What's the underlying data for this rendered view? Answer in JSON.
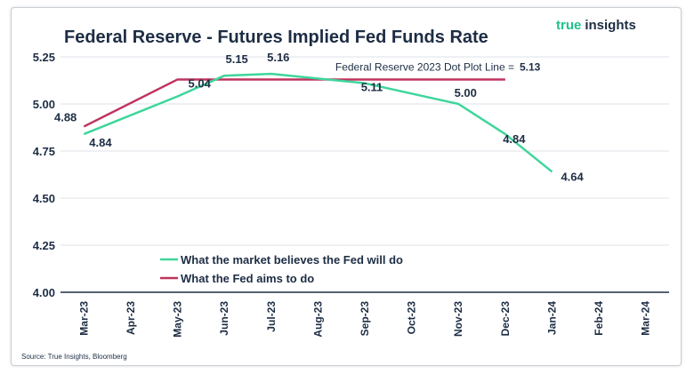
{
  "brand": {
    "part1": "true",
    "part2": "insights",
    "color1": "#21c08b",
    "color2": "#1d2d44"
  },
  "source": "Source: True Insights, Bloomberg",
  "chart_data": {
    "type": "line",
    "title": "Federal Reserve - Futures Implied Fed Funds Rate",
    "xlabel": "",
    "ylabel": "",
    "categories": [
      "Mar-23",
      "Apr-23",
      "May-23",
      "Jun-23",
      "Jul-23",
      "Aug-23",
      "Sep-23",
      "Oct-23",
      "Nov-23",
      "Dec-23",
      "Jan-24",
      "Feb-24",
      "Mar-24"
    ],
    "ylim": [
      4.0,
      5.25
    ],
    "yticks": [
      "4.00",
      "4.25",
      "4.50",
      "4.75",
      "5.00",
      "5.25"
    ],
    "grid": "horizontal",
    "legend_position": "bottom-left",
    "series": [
      {
        "name": "What the market believes the Fed will do",
        "color": "#3ed69b",
        "points": [
          {
            "x": "Mar-23",
            "y": 4.84,
            "label": "4.84"
          },
          {
            "x": "May-23",
            "y": 5.04,
            "label": "5.04"
          },
          {
            "x": "Jun-23",
            "y": 5.15,
            "label": "5.15"
          },
          {
            "x": "Jul-23",
            "y": 5.16,
            "label": "5.16"
          },
          {
            "x": "Sep-23",
            "y": 5.11,
            "label": "5.11"
          },
          {
            "x": "Nov-23",
            "y": 5.0,
            "label": "5.00"
          },
          {
            "x": "Dec-23",
            "y": 4.84,
            "label": "4.84"
          },
          {
            "x": "Jan-24",
            "y": 4.64,
            "label": "4.64"
          }
        ]
      },
      {
        "name": "What the Fed aims to do",
        "color": "#c0335f",
        "points": [
          {
            "x": "Mar-23",
            "y": 4.88,
            "label": "4.88"
          },
          {
            "x": "May-23",
            "y": 5.13,
            "label": ""
          },
          {
            "x": "Dec-23",
            "y": 5.13,
            "label": ""
          }
        ]
      }
    ],
    "annotations": [
      {
        "text": "Federal Reserve 2023 Dot Plot Line =",
        "value": "5.13"
      }
    ]
  }
}
